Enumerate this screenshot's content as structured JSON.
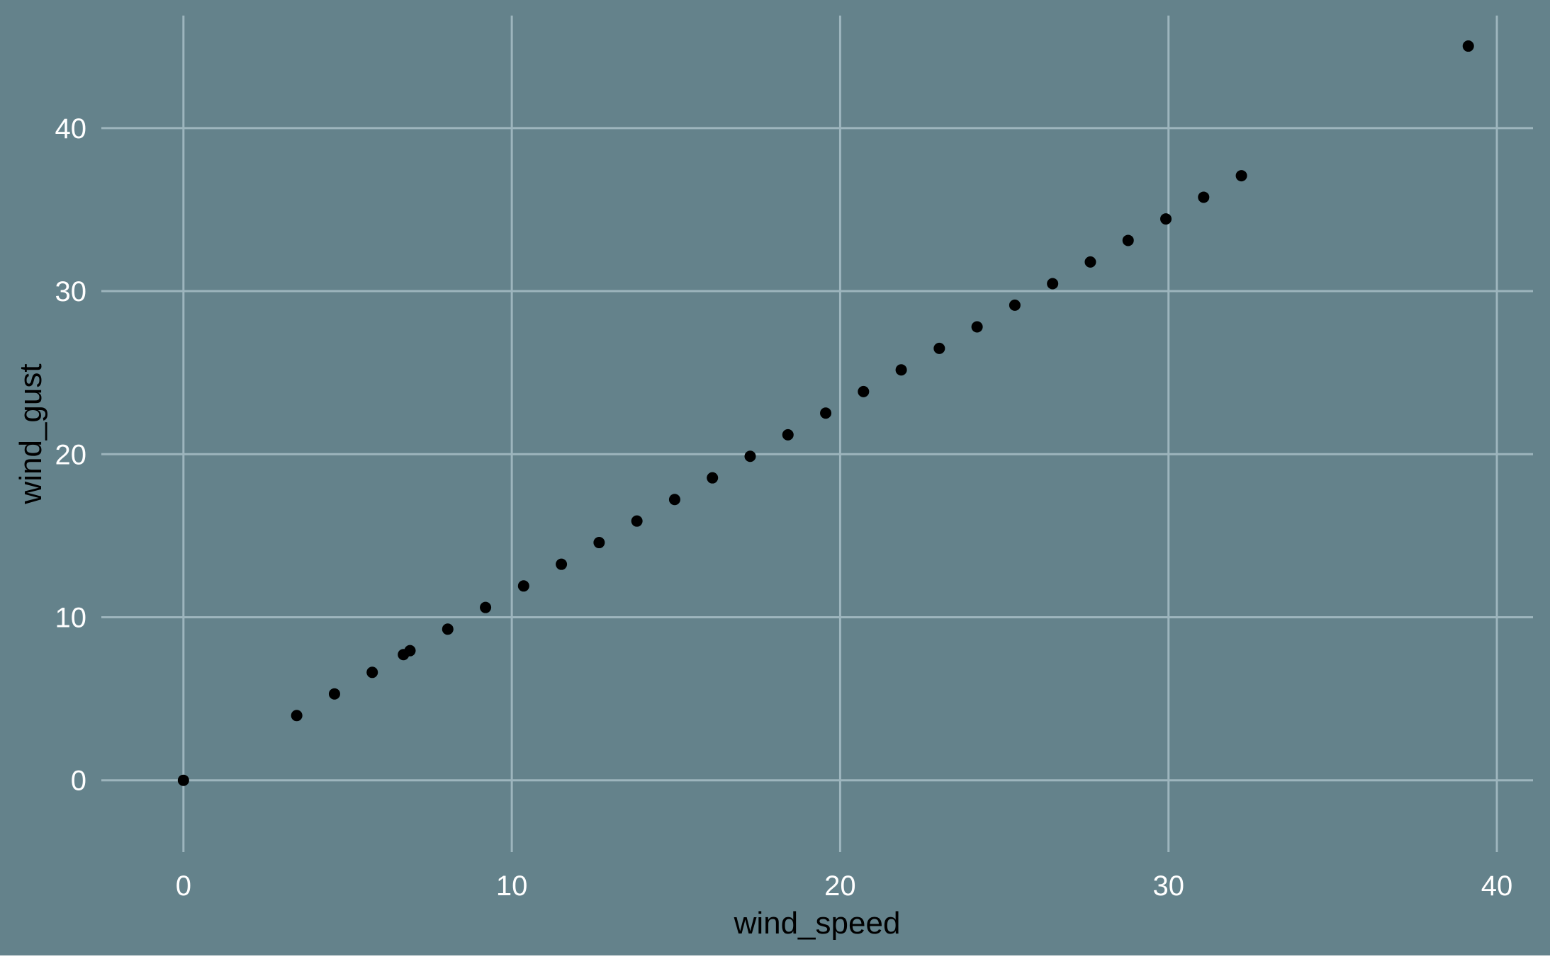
{
  "chart_data": {
    "type": "scatter",
    "title": "",
    "xlabel": "wind_speed",
    "ylabel": "wind_gust",
    "xlim": [
      -2.5,
      41.1
    ],
    "ylim": [
      -4.4,
      46.9
    ],
    "x_ticks": [
      0,
      10,
      20,
      30,
      40
    ],
    "y_ticks": [
      0,
      10,
      20,
      30,
      40
    ],
    "grid": true,
    "legend": "none",
    "colors": {
      "background": "#64828b",
      "grid": "#9db5bd",
      "tick_text": "#ffffff",
      "axis_label": "#000000",
      "point": "#000000"
    },
    "points": [
      {
        "x": 0,
        "y": 0
      },
      {
        "x": 3.45,
        "y": 3.97
      },
      {
        "x": 4.6,
        "y": 5.3
      },
      {
        "x": 5.75,
        "y": 6.62
      },
      {
        "x": 6.7,
        "y": 7.71
      },
      {
        "x": 6.9,
        "y": 7.95
      },
      {
        "x": 8.05,
        "y": 9.27
      },
      {
        "x": 9.2,
        "y": 10.6
      },
      {
        "x": 10.36,
        "y": 11.92
      },
      {
        "x": 11.51,
        "y": 13.25
      },
      {
        "x": 12.66,
        "y": 14.58
      },
      {
        "x": 13.81,
        "y": 15.9
      },
      {
        "x": 14.96,
        "y": 17.22
      },
      {
        "x": 16.11,
        "y": 18.55
      },
      {
        "x": 17.26,
        "y": 19.87
      },
      {
        "x": 18.41,
        "y": 21.19
      },
      {
        "x": 19.56,
        "y": 22.52
      },
      {
        "x": 20.71,
        "y": 23.84
      },
      {
        "x": 21.86,
        "y": 25.17
      },
      {
        "x": 23.02,
        "y": 26.49
      },
      {
        "x": 24.17,
        "y": 27.81
      },
      {
        "x": 25.32,
        "y": 29.14
      },
      {
        "x": 26.47,
        "y": 30.46
      },
      {
        "x": 27.62,
        "y": 31.79
      },
      {
        "x": 28.77,
        "y": 33.11
      },
      {
        "x": 29.92,
        "y": 34.43
      },
      {
        "x": 31.07,
        "y": 35.76
      },
      {
        "x": 32.22,
        "y": 37.08
      },
      {
        "x": 39.13,
        "y": 45.03
      }
    ]
  }
}
